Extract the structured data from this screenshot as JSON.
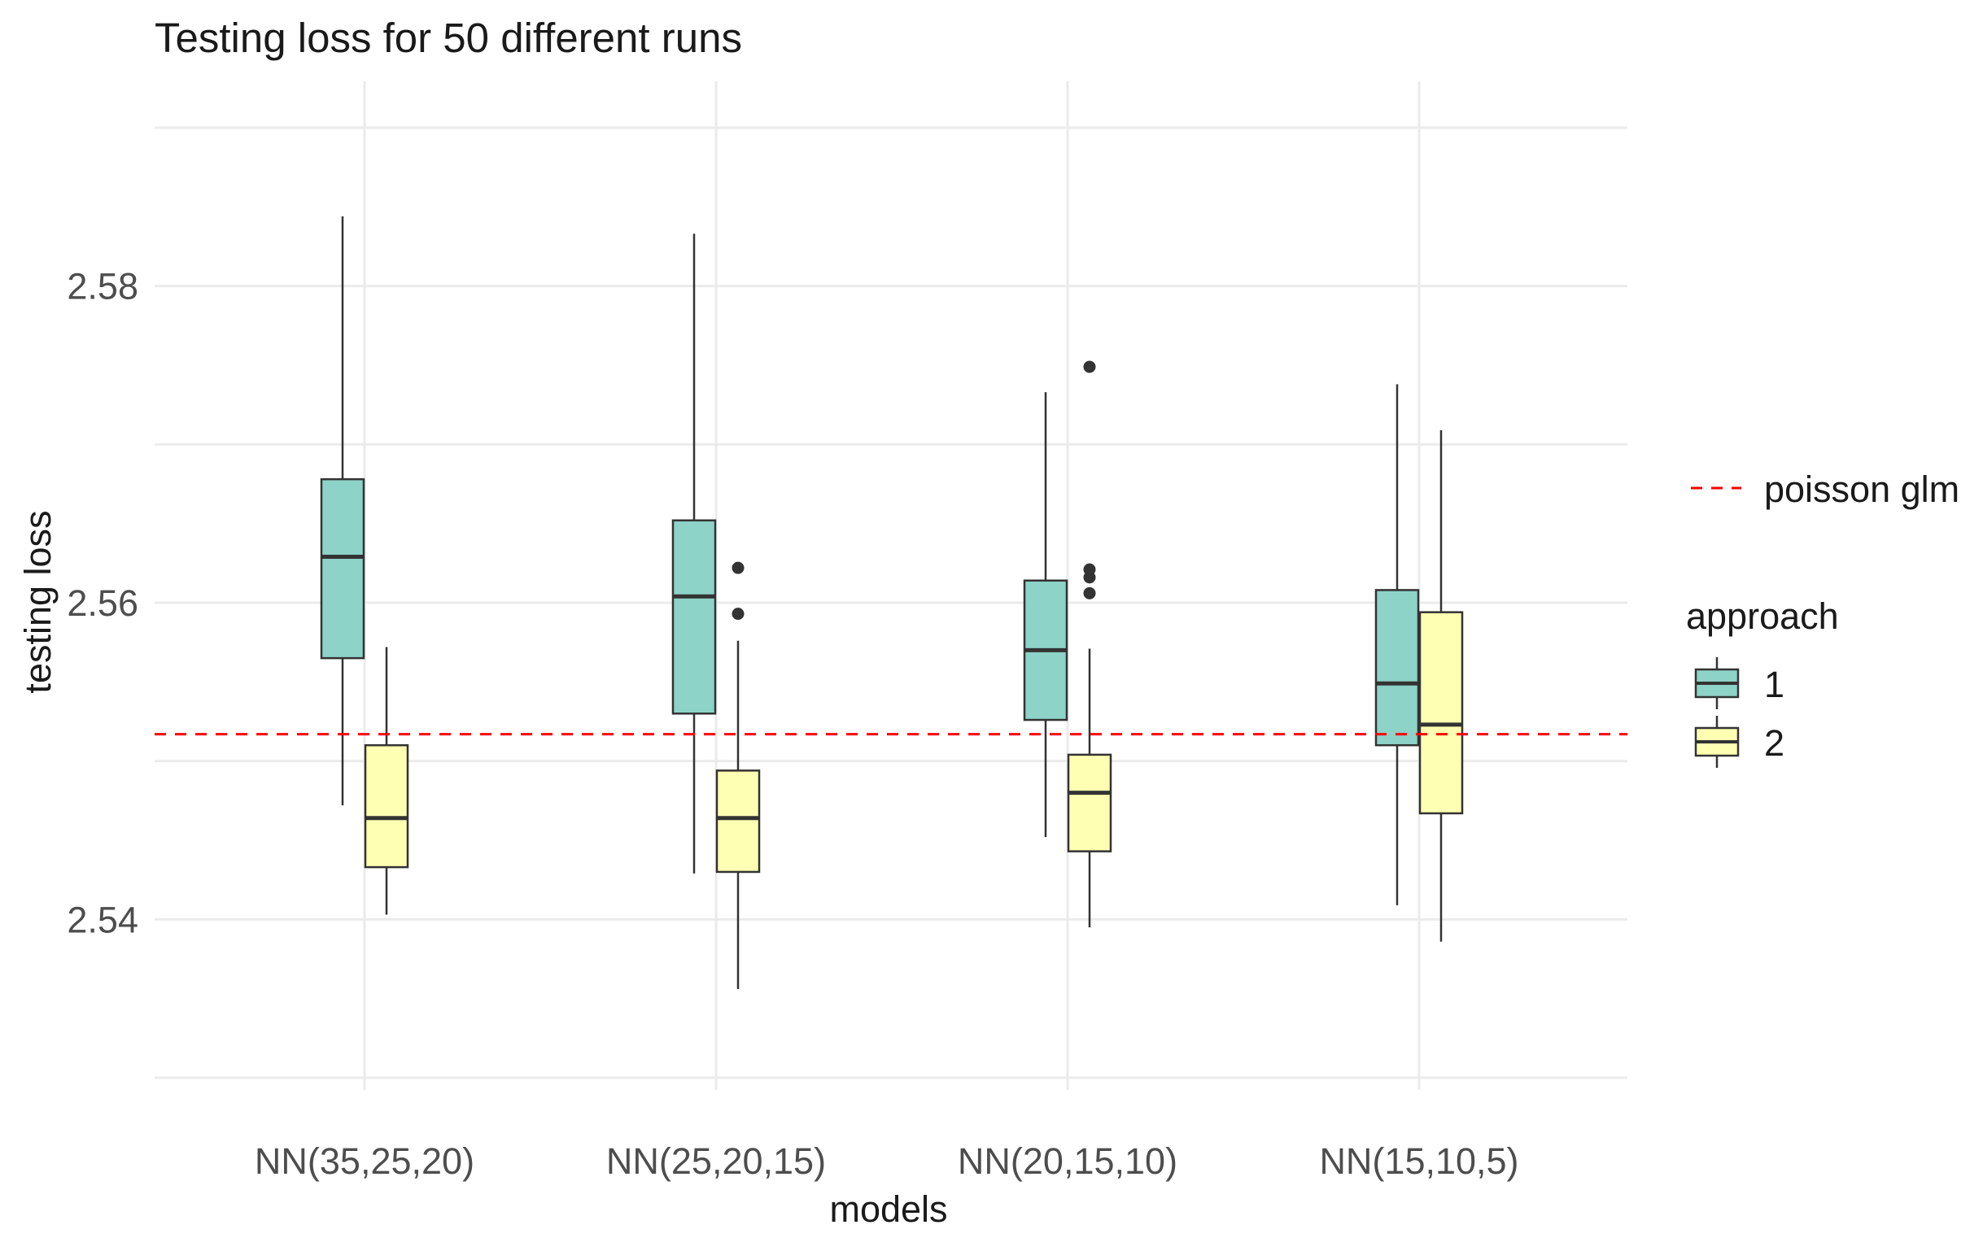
{
  "chart_data": {
    "type": "boxplot",
    "title": "Testing loss for 50 different runs",
    "xlabel": "models",
    "ylabel": "testing loss",
    "ylim": [
      2.53,
      2.59
    ],
    "yticks": [
      2.54,
      2.56,
      2.58
    ],
    "ytick_labels": [
      "2.54",
      "2.56",
      "2.58"
    ],
    "categories": [
      "NN(35,25,20)",
      "NN(25,20,15)",
      "NN(20,15,10)",
      "NN(15,10,5)"
    ],
    "series": [
      {
        "name": "1",
        "color": "#8dd3c7",
        "boxes": [
          {
            "lower": 2.5472,
            "q1": 2.5565,
            "median": 2.5629,
            "q3": 2.5678,
            "upper": 2.5844,
            "outliers": []
          },
          {
            "lower": 2.5429,
            "q1": 2.553,
            "median": 2.5604,
            "q3": 2.5652,
            "upper": 2.5833,
            "outliers": []
          },
          {
            "lower": 2.5452,
            "q1": 2.5526,
            "median": 2.557,
            "q3": 2.5614,
            "upper": 2.5733,
            "outliers": []
          },
          {
            "lower": 2.5409,
            "q1": 2.551,
            "median": 2.5549,
            "q3": 2.5608,
            "upper": 2.5738,
            "outliers": []
          }
        ]
      },
      {
        "name": "2",
        "color": "#ffffb3",
        "boxes": [
          {
            "lower": 2.5403,
            "q1": 2.5433,
            "median": 2.5464,
            "q3": 2.551,
            "upper": 2.5572,
            "outliers": []
          },
          {
            "lower": 2.5356,
            "q1": 2.543,
            "median": 2.5464,
            "q3": 2.5494,
            "upper": 2.5576,
            "outliers": [
              2.5593,
              2.5622
            ]
          },
          {
            "lower": 2.5395,
            "q1": 2.5443,
            "median": 2.548,
            "q3": 2.5504,
            "upper": 2.5571,
            "outliers": [
              2.5606,
              2.5616,
              2.5621,
              2.5749
            ]
          },
          {
            "lower": 2.5386,
            "q1": 2.5467,
            "median": 2.5523,
            "q3": 2.5594,
            "upper": 2.5709,
            "outliers": []
          }
        ]
      }
    ],
    "reference_line": {
      "label": "poisson glm",
      "value": 2.5517,
      "color": "#ff0000",
      "style": "dashed"
    },
    "legend": {
      "title": "approach",
      "entries": [
        "1",
        "2"
      ],
      "position": "right"
    },
    "grid": true
  }
}
